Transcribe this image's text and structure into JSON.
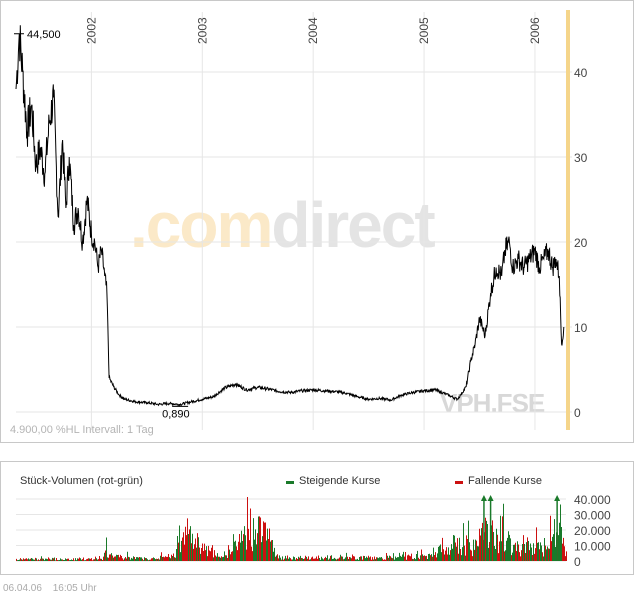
{
  "watermark": {
    "part1": ".com",
    "part2": "direct"
  },
  "symbol": "VPH.FSE",
  "info_text": "4.900,00 %HL Intervall: 1 Tag",
  "footer": {
    "date": "06.04.06",
    "time": "16:05 Uhr"
  },
  "colors": {
    "price_line": "#000000",
    "rising": "#1a7a2a",
    "falling": "#cc1111",
    "current_marker": "#f5d58a",
    "grid": "#e6e6e6"
  },
  "chart_data": [
    {
      "type": "line",
      "xlim": [
        2001.32,
        2006.28
      ],
      "ylim": [
        -1,
        46
      ],
      "x_ticks": [
        {
          "x": 2002.0,
          "label": "2002"
        },
        {
          "x": 2003.0,
          "label": "2003"
        },
        {
          "x": 2004.0,
          "label": "2004"
        },
        {
          "x": 2005.0,
          "label": "2005"
        },
        {
          "x": 2006.0,
          "label": "2006"
        }
      ],
      "y_ticks": [
        0,
        10,
        20,
        30,
        40
      ],
      "annotations": [
        {
          "x": 2001.35,
          "y": 44.5,
          "label": "44,500"
        },
        {
          "x": 2002.8,
          "y": 0.89,
          "label": "0,890"
        }
      ],
      "series": [
        {
          "x": [
            2001.32,
            2001.35,
            2001.38,
            2001.42,
            2001.46,
            2001.5,
            2001.54,
            2001.58,
            2001.62,
            2001.66,
            2001.7,
            2001.74,
            2001.77,
            2001.8,
            2001.84,
            2001.88,
            2001.92,
            2001.96,
            2002.0,
            2002.03,
            2002.06,
            2002.09,
            2002.12,
            2002.14,
            2002.16,
            2002.2,
            2002.25,
            2002.3,
            2002.4,
            2002.5,
            2002.6,
            2002.7,
            2002.8,
            2002.9,
            2003.0,
            2003.1,
            2003.2,
            2003.3,
            2003.4,
            2003.5,
            2003.6,
            2003.7,
            2003.8,
            2003.9,
            2004.0,
            2004.1,
            2004.2,
            2004.3,
            2004.4,
            2004.5,
            2004.6,
            2004.7,
            2004.8,
            2004.9,
            2005.0,
            2005.1,
            2005.2,
            2005.3,
            2005.33,
            2005.38,
            2005.42,
            2005.46,
            2005.5,
            2005.55,
            2005.6,
            2005.65,
            2005.7,
            2005.73,
            2005.77,
            2005.8,
            2005.85,
            2005.9,
            2005.95,
            2006.0,
            2006.04,
            2006.08,
            2006.12,
            2006.16,
            2006.19,
            2006.22,
            2006.24,
            2006.26
          ],
          "y": [
            38,
            44.5,
            40,
            33,
            36,
            29,
            31,
            28,
            34,
            37,
            23,
            32,
            24,
            30,
            22,
            24,
            20,
            25,
            21,
            20,
            17,
            19,
            16,
            14,
            4,
            3,
            2,
            1.5,
            1.2,
            1.1,
            0.9,
            1,
            0.89,
            1.2,
            1.5,
            1.8,
            2.8,
            3.3,
            2.6,
            2.9,
            2.7,
            2.4,
            2.3,
            2.5,
            2.6,
            2.5,
            2.4,
            2.2,
            1.8,
            1.5,
            1.6,
            1.4,
            2,
            2.3,
            2.5,
            2.6,
            2.1,
            1.5,
            2,
            3,
            6,
            8,
            11,
            9,
            14,
            17,
            16,
            19,
            20,
            17,
            18,
            17,
            18,
            19,
            17,
            18,
            19,
            17,
            18,
            16,
            8,
            10
          ]
        }
      ]
    },
    {
      "type": "bar",
      "title": "Stück-Volumen (rot-grün)",
      "legend": [
        {
          "name": "Steigende Kurse",
          "color": "#1a7a2a"
        },
        {
          "name": "Fallende Kurse",
          "color": "#cc1111"
        }
      ],
      "ylim": [
        0,
        45000
      ],
      "y_ticks": [
        {
          "value": 0,
          "label": "0"
        },
        {
          "value": 10000,
          "label": "10.000"
        },
        {
          "value": 20000,
          "label": "20.000"
        },
        {
          "value": 30000,
          "label": "30.000"
        },
        {
          "value": 40000,
          "label": "40.000"
        }
      ],
      "volume_profile": [
        {
          "x": 2001.32,
          "v": 2500
        },
        {
          "x": 2001.5,
          "v": 3000
        },
        {
          "x": 2001.8,
          "v": 2500
        },
        {
          "x": 2002.1,
          "v": 2500
        },
        {
          "x": 2002.13,
          "v": 16000
        },
        {
          "x": 2002.2,
          "v": 6000
        },
        {
          "x": 2002.5,
          "v": 3000
        },
        {
          "x": 2002.75,
          "v": 7000
        },
        {
          "x": 2002.85,
          "v": 42000
        },
        {
          "x": 2003.1,
          "v": 7000
        },
        {
          "x": 2003.2,
          "v": 10000
        },
        {
          "x": 2003.4,
          "v": 36000
        },
        {
          "x": 2003.55,
          "v": 42000
        },
        {
          "x": 2003.7,
          "v": 5000
        },
        {
          "x": 2004.0,
          "v": 4000
        },
        {
          "x": 2004.5,
          "v": 4500
        },
        {
          "x": 2004.8,
          "v": 5000
        },
        {
          "x": 2005.0,
          "v": 7000
        },
        {
          "x": 2005.3,
          "v": 25000
        },
        {
          "x": 2005.45,
          "v": 20000
        },
        {
          "x": 2005.55,
          "v": 40000
        },
        {
          "x": 2005.7,
          "v": 30000
        },
        {
          "x": 2005.85,
          "v": 20000
        },
        {
          "x": 2006.1,
          "v": 15000
        },
        {
          "x": 2006.2,
          "v": 45000
        },
        {
          "x": 2006.28,
          "v": 10000
        }
      ],
      "overflow_markers": [
        2005.54,
        2005.6,
        2006.2
      ]
    }
  ]
}
